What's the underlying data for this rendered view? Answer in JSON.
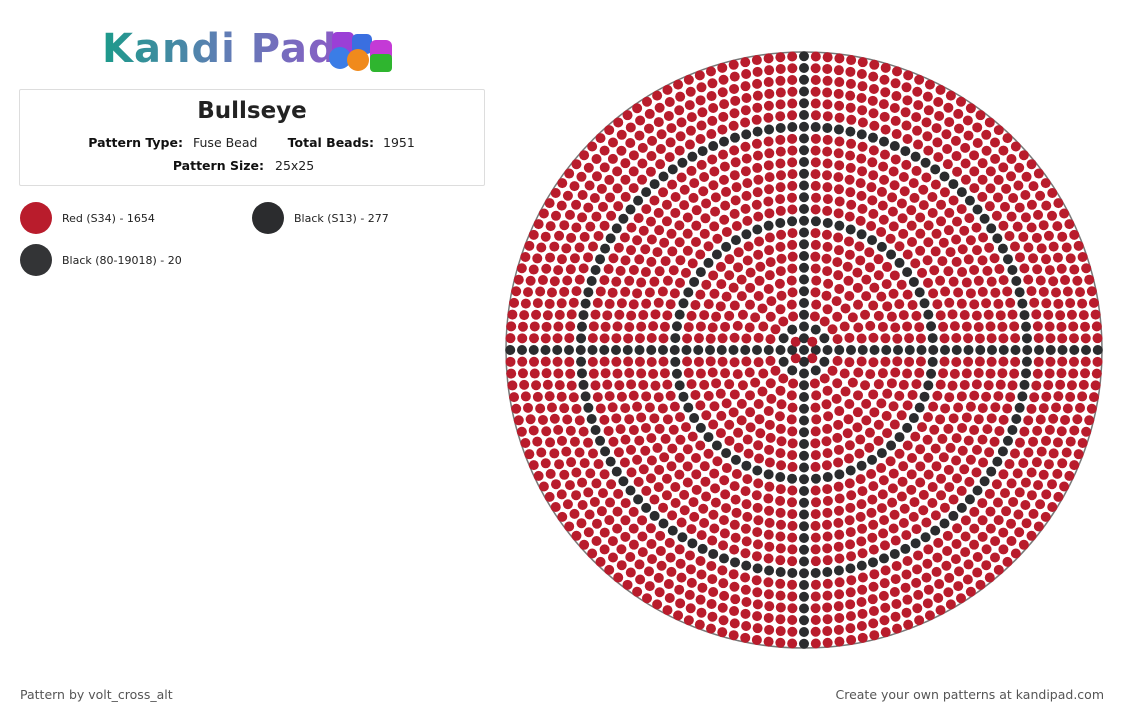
{
  "header": {
    "logo": "Kandi Pad"
  },
  "pattern": {
    "title": "Bullseye",
    "fields": [
      {
        "label": "Pattern Type:",
        "value": "Fuse Bead"
      },
      {
        "label": "Total Beads:",
        "value": "1951"
      },
      {
        "label": "Pattern Size:",
        "value": "25x25"
      }
    ]
  },
  "legend": [
    {
      "label": "Red (S34) - 1654",
      "color": "#b91c2c"
    },
    {
      "label": "Black (S13) - 277",
      "color": "#2b2c2e"
    },
    {
      "label": "Black (80-19018) - 20",
      "color": "#333436"
    }
  ],
  "footer": {
    "left": "Pattern by volt_cross_alt",
    "right": "Create your own patterns at kandipad.com"
  }
}
